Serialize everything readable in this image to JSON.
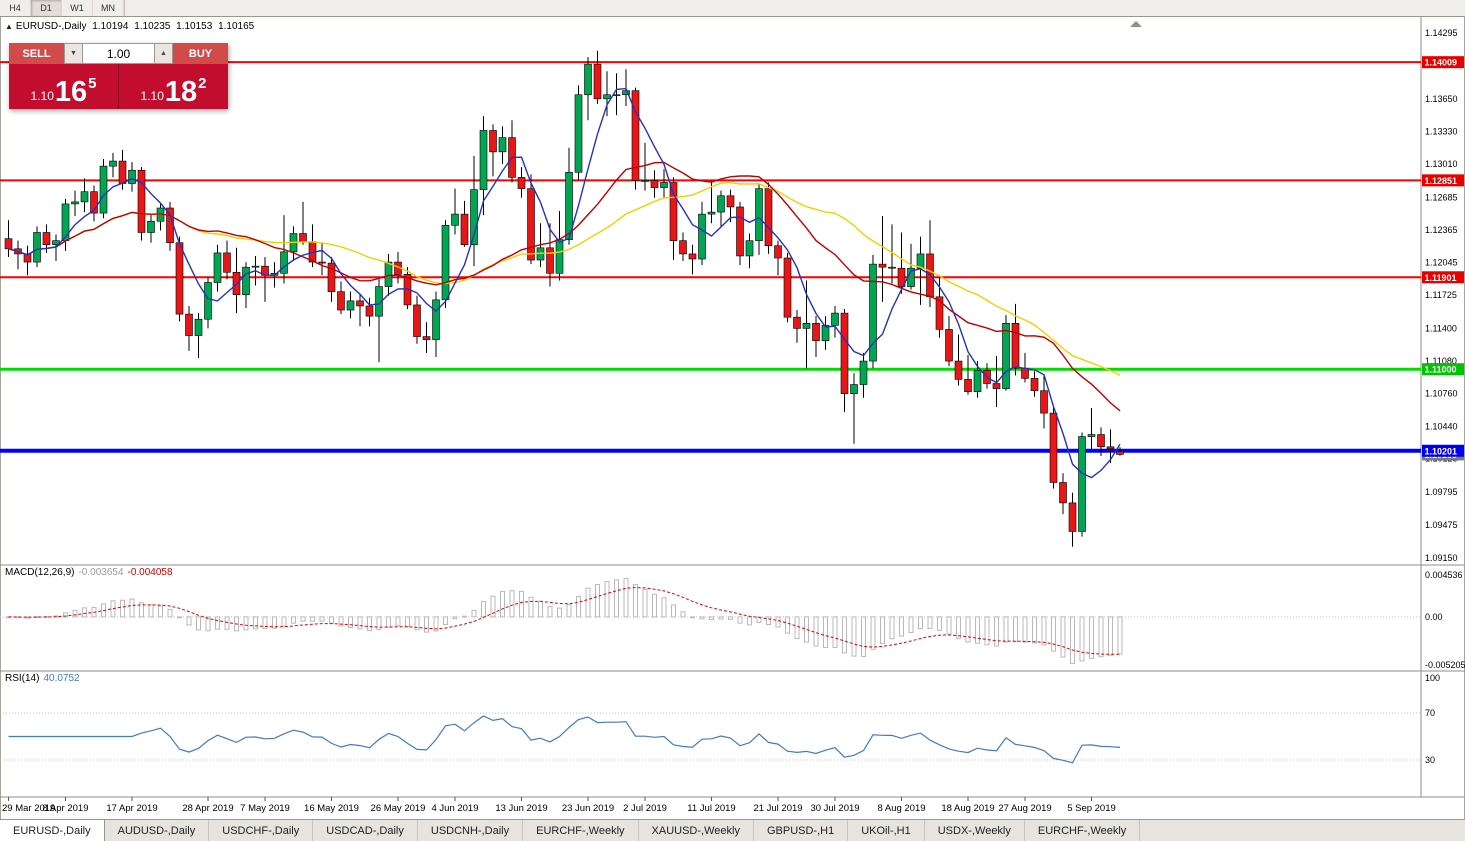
{
  "toolbar": {
    "timeframes": [
      {
        "label": "H4",
        "active": false
      },
      {
        "label": "D1",
        "active": true
      },
      {
        "label": "W1",
        "active": false
      },
      {
        "label": "MN",
        "active": false
      }
    ]
  },
  "chart": {
    "symbol": "EURUSD-,Daily",
    "open": "1.10194",
    "high": "1.10235",
    "low": "1.10153",
    "close": "1.10165",
    "panel_toggle_icon": "▲"
  },
  "trade_panel": {
    "sell_label": "SELL",
    "buy_label": "BUY",
    "volume": "1.00",
    "volume_down_icon": "▼",
    "volume_up_icon": "▲",
    "bid": {
      "prefix": "1.10",
      "big": "16",
      "sup": "5"
    },
    "ask": {
      "prefix": "1.10",
      "big": "18",
      "sup": "2"
    },
    "panel_color": "#c30d2e",
    "button_color": "#d14b4b"
  },
  "indicators": {
    "macd": {
      "name": "MACD(12,26,9)",
      "value_main": "-0.003654",
      "value_signal": "-0.004058",
      "axis_labels": [
        "0.004536",
        "0.00",
        "-0.005205"
      ]
    },
    "rsi": {
      "name": "RSI(14)",
      "value": "40.0752",
      "axis_labels": [
        "100",
        "70",
        "30"
      ]
    }
  },
  "tabs": {
    "active": 0,
    "items": [
      "EURUSD-,Daily",
      "AUDUSD-,Daily",
      "USDCHF-,Daily",
      "USDCAD-,Daily",
      "USDCNH-,Daily",
      "EURCHF-,Weekly",
      "XAUUSD-,Weekly",
      "GBPUSD-,H1",
      "UKOil-,H1",
      "USDX-,Weekly",
      "EURCHF-,Weekly"
    ]
  },
  "chart_data": {
    "type": "candlestick",
    "symbol": "EURUSD",
    "timeframe": "Daily",
    "y_axis": {
      "ticks": [
        "1.14295",
        "1.13650",
        "1.13330",
        "1.13010",
        "1.12685",
        "1.12365",
        "1.12045",
        "1.11725",
        "1.11400",
        "1.11080",
        "1.10760",
        "1.10440",
        "1.10125",
        "1.09795",
        "1.09475",
        "1.09150"
      ]
    },
    "x_axis": {
      "labels": [
        {
          "i": 0,
          "t": "29 Mar 2019"
        },
        {
          "i": 6,
          "t": "8 Apr 2019"
        },
        {
          "i": 13,
          "t": "17 Apr 2019"
        },
        {
          "i": 21,
          "t": "28 Apr 2019"
        },
        {
          "i": 27,
          "t": "7 May 2019"
        },
        {
          "i": 34,
          "t": "16 May 2019"
        },
        {
          "i": 41,
          "t": "26 May 2019"
        },
        {
          "i": 47,
          "t": "4 Jun 2019"
        },
        {
          "i": 54,
          "t": "13 Jun 2019"
        },
        {
          "i": 61,
          "t": "23 Jun 2019"
        },
        {
          "i": 67,
          "t": "2 Jul 2019"
        },
        {
          "i": 74,
          "t": "11 Jul 2019"
        },
        {
          "i": 81,
          "t": "21 Jul 2019"
        },
        {
          "i": 87,
          "t": "30 Jul 2019"
        },
        {
          "i": 94,
          "t": "8 Aug 2019"
        },
        {
          "i": 101,
          "t": "18 Aug 2019"
        },
        {
          "i": 107,
          "t": "27 Aug 2019"
        },
        {
          "i": 114,
          "t": "5 Sep 2019"
        }
      ]
    },
    "h_lines": [
      {
        "price": 1.14009,
        "label": "1.14009",
        "color": "#fe0000",
        "tag_bg": "#e60000",
        "tag_fg": "#ffffff",
        "stroke_w": 2
      },
      {
        "price": 1.12851,
        "label": "1.12851",
        "color": "#fe0000",
        "tag_bg": "#e60000",
        "tag_fg": "#ffffff",
        "stroke_w": 2
      },
      {
        "price": 1.11901,
        "label": "1.11901",
        "color": "#fe0000",
        "tag_bg": "#e60000",
        "tag_fg": "#ffffff",
        "stroke_w": 2
      },
      {
        "price": 1.11,
        "label": "1.11000",
        "color": "#00dc00",
        "tag_bg": "#00c400",
        "tag_fg": "#ffffff",
        "stroke_w": 3
      },
      {
        "price": 1.10201,
        "label": "1.10201",
        "color": "#0000ff",
        "tag_bg": "#0000ee",
        "tag_fg": "#ffffff",
        "stroke_w": 4
      }
    ],
    "current_bid_tag": {
      "price": 1.10165,
      "label": "1.10165",
      "tag_bg": "#7a7a7a",
      "tag_fg": "#ffffff"
    },
    "moving_averages": [
      {
        "period": 30,
        "type": "sma",
        "color": "#f2cf01",
        "width": 1.4
      },
      {
        "period": 20,
        "type": "sma",
        "color": "#c00000",
        "width": 1.4
      },
      {
        "period": 5,
        "type": "sma",
        "color": "#2431c4",
        "width": 1.4
      }
    ],
    "candle_colors": {
      "up": "#00a651",
      "down": "#e81717",
      "outline": "#000000"
    },
    "macd_settings": {
      "fast": 12,
      "slow": 26,
      "signal": 9,
      "hist_color": "#b9b9b9",
      "signal_color": "#e00000",
      "axis": {
        "top": 0.004536,
        "zero": 0,
        "bottom": -0.005205
      }
    },
    "rsi_settings": {
      "period": 14,
      "color": "#3f7cc4",
      "levels": [
        70,
        30
      ]
    },
    "candles": [
      [
        1.1228,
        1.1246,
        1.121,
        1.1218
      ],
      [
        1.1218,
        1.1226,
        1.1198,
        1.1213
      ],
      [
        1.1213,
        1.1221,
        1.1192,
        1.1205
      ],
      [
        1.1205,
        1.124,
        1.12,
        1.1234
      ],
      [
        1.1234,
        1.1242,
        1.1214,
        1.1222
      ],
      [
        1.1222,
        1.1232,
        1.1206,
        1.1226
      ],
      [
        1.1226,
        1.1267,
        1.1216,
        1.1262
      ],
      [
        1.1262,
        1.1275,
        1.125,
        1.1264
      ],
      [
        1.1264,
        1.1287,
        1.1254,
        1.1274
      ],
      [
        1.1274,
        1.128,
        1.1245,
        1.1253
      ],
      [
        1.1253,
        1.1306,
        1.1248,
        1.1299
      ],
      [
        1.1299,
        1.1312,
        1.1288,
        1.1304
      ],
      [
        1.1304,
        1.1315,
        1.1276,
        1.1282
      ],
      [
        1.1282,
        1.1303,
        1.1274,
        1.1295
      ],
      [
        1.1295,
        1.1298,
        1.1226,
        1.1234
      ],
      [
        1.1234,
        1.1252,
        1.1224,
        1.1245
      ],
      [
        1.1245,
        1.1262,
        1.1236,
        1.1258
      ],
      [
        1.1258,
        1.1264,
        1.1216,
        1.1224
      ],
      [
        1.1224,
        1.123,
        1.1147,
        1.1154
      ],
      [
        1.1154,
        1.1162,
        1.1118,
        1.1133
      ],
      [
        1.1133,
        1.1155,
        1.1111,
        1.1149
      ],
      [
        1.1149,
        1.119,
        1.114,
        1.1185
      ],
      [
        1.1185,
        1.1222,
        1.1176,
        1.1214
      ],
      [
        1.1214,
        1.1226,
        1.1188,
        1.1195
      ],
      [
        1.1195,
        1.1219,
        1.1155,
        1.1173
      ],
      [
        1.1173,
        1.1205,
        1.116,
        1.12
      ],
      [
        1.12,
        1.1211,
        1.1182,
        1.1201
      ],
      [
        1.1201,
        1.121,
        1.1166,
        1.1192
      ],
      [
        1.1192,
        1.1205,
        1.118,
        1.1194
      ],
      [
        1.1194,
        1.1251,
        1.1184,
        1.1215
      ],
      [
        1.1215,
        1.124,
        1.1206,
        1.1233
      ],
      [
        1.1233,
        1.1264,
        1.1222,
        1.1225
      ],
      [
        1.1225,
        1.1242,
        1.12,
        1.1205
      ],
      [
        1.1205,
        1.1224,
        1.1192,
        1.1204
      ],
      [
        1.1204,
        1.121,
        1.1166,
        1.1176
      ],
      [
        1.1176,
        1.1186,
        1.1154,
        1.1158
      ],
      [
        1.1158,
        1.1176,
        1.115,
        1.1167
      ],
      [
        1.1167,
        1.1174,
        1.1142,
        1.1162
      ],
      [
        1.1162,
        1.117,
        1.1142,
        1.1152
      ],
      [
        1.1152,
        1.1188,
        1.1107,
        1.1181
      ],
      [
        1.1181,
        1.1213,
        1.1172,
        1.1205
      ],
      [
        1.1205,
        1.1215,
        1.1184,
        1.1193
      ],
      [
        1.1193,
        1.12,
        1.1159,
        1.1163
      ],
      [
        1.1163,
        1.1172,
        1.1125,
        1.1132
      ],
      [
        1.1132,
        1.1146,
        1.1116,
        1.1129
      ],
      [
        1.1129,
        1.1176,
        1.1112,
        1.1168
      ],
      [
        1.1168,
        1.1246,
        1.116,
        1.1241
      ],
      [
        1.1241,
        1.1277,
        1.1232,
        1.1252
      ],
      [
        1.1252,
        1.1265,
        1.122,
        1.1222
      ],
      [
        1.1222,
        1.1309,
        1.1201,
        1.1276
      ],
      [
        1.1276,
        1.1348,
        1.1251,
        1.1334
      ],
      [
        1.1334,
        1.134,
        1.1289,
        1.1313
      ],
      [
        1.1313,
        1.1338,
        1.1301,
        1.1327
      ],
      [
        1.1327,
        1.1344,
        1.1283,
        1.1288
      ],
      [
        1.1288,
        1.1298,
        1.1268,
        1.1277
      ],
      [
        1.1277,
        1.1291,
        1.1203,
        1.1207
      ],
      [
        1.1207,
        1.1243,
        1.12,
        1.1219
      ],
      [
        1.1219,
        1.1243,
        1.1181,
        1.1194
      ],
      [
        1.1194,
        1.1255,
        1.1187,
        1.1227
      ],
      [
        1.1227,
        1.1317,
        1.1222,
        1.1293
      ],
      [
        1.1293,
        1.1378,
        1.1285,
        1.1369
      ],
      [
        1.1369,
        1.1406,
        1.1344,
        1.1399
      ],
      [
        1.1399,
        1.1412,
        1.136,
        1.1365
      ],
      [
        1.1365,
        1.1392,
        1.1348,
        1.1369
      ],
      [
        1.1369,
        1.139,
        1.1349,
        1.1369
      ],
      [
        1.1369,
        1.1394,
        1.1358,
        1.1373
      ],
      [
        1.1373,
        1.1376,
        1.1276,
        1.1285
      ],
      [
        1.1285,
        1.1322,
        1.1275,
        1.1285
      ],
      [
        1.1285,
        1.1295,
        1.1268,
        1.1278
      ],
      [
        1.1278,
        1.1296,
        1.1268,
        1.1283
      ],
      [
        1.1283,
        1.1288,
        1.1207,
        1.1226
      ],
      [
        1.1226,
        1.1234,
        1.1206,
        1.1213
      ],
      [
        1.1213,
        1.1222,
        1.1193,
        1.1208
      ],
      [
        1.1208,
        1.1264,
        1.1202,
        1.1252
      ],
      [
        1.1252,
        1.1285,
        1.1243,
        1.1254
      ],
      [
        1.1254,
        1.1275,
        1.1239,
        1.127
      ],
      [
        1.127,
        1.1276,
        1.1244,
        1.1259
      ],
      [
        1.1259,
        1.1264,
        1.1202,
        1.1211
      ],
      [
        1.1211,
        1.1233,
        1.1199,
        1.1226
      ],
      [
        1.1226,
        1.1282,
        1.1212,
        1.1277
      ],
      [
        1.1277,
        1.1283,
        1.1213,
        1.1221
      ],
      [
        1.1221,
        1.1226,
        1.1192,
        1.1209
      ],
      [
        1.1209,
        1.1214,
        1.1146,
        1.1151
      ],
      [
        1.1151,
        1.1158,
        1.1126,
        1.114
      ],
      [
        1.114,
        1.1187,
        1.1101,
        1.1145
      ],
      [
        1.1145,
        1.1152,
        1.1112,
        1.1128
      ],
      [
        1.1128,
        1.1152,
        1.1119,
        1.1143
      ],
      [
        1.1143,
        1.1162,
        1.1131,
        1.1155
      ],
      [
        1.1155,
        1.1159,
        1.1058,
        1.1076
      ],
      [
        1.1076,
        1.1096,
        1.1027,
        1.1085
      ],
      [
        1.1085,
        1.1116,
        1.1072,
        1.1108
      ],
      [
        1.1108,
        1.1212,
        1.1101,
        1.1203
      ],
      [
        1.1203,
        1.125,
        1.1166,
        1.12
      ],
      [
        1.12,
        1.1242,
        1.1184,
        1.1199
      ],
      [
        1.1199,
        1.1234,
        1.1174,
        1.1181
      ],
      [
        1.1181,
        1.1223,
        1.1178,
        1.1199
      ],
      [
        1.1199,
        1.123,
        1.1163,
        1.1213
      ],
      [
        1.1213,
        1.1246,
        1.1161,
        1.1171
      ],
      [
        1.1171,
        1.1192,
        1.1131,
        1.1139
      ],
      [
        1.1139,
        1.1152,
        1.1103,
        1.1108
      ],
      [
        1.1108,
        1.1134,
        1.1084,
        1.109
      ],
      [
        1.109,
        1.1114,
        1.1075,
        1.1078
      ],
      [
        1.1078,
        1.1108,
        1.1072,
        1.1099
      ],
      [
        1.1099,
        1.1106,
        1.1081,
        1.1086
      ],
      [
        1.1086,
        1.1113,
        1.1063,
        1.1081
      ],
      [
        1.1081,
        1.1153,
        1.1079,
        1.1145
      ],
      [
        1.1145,
        1.1164,
        1.1094,
        1.1101
      ],
      [
        1.1101,
        1.1116,
        1.1087,
        1.1091
      ],
      [
        1.1091,
        1.1098,
        1.1073,
        1.1079
      ],
      [
        1.1079,
        1.1094,
        1.1042,
        1.1057
      ],
      [
        1.1057,
        1.1064,
        1.0983,
        1.0989
      ],
      [
        1.0989,
        1.0998,
        1.0958,
        1.0969
      ],
      [
        1.0969,
        1.0979,
        1.0926,
        1.0941
      ],
      [
        1.0941,
        1.1038,
        1.0936,
        1.1034
      ],
      [
        1.1034,
        1.1062,
        1.1022,
        1.1036
      ],
      [
        1.1036,
        1.1043,
        1.1015,
        1.1024
      ],
      [
        1.1024,
        1.1041,
        1.1008,
        1.1022
      ],
      [
        1.10194,
        1.10235,
        1.10153,
        1.10165
      ]
    ]
  }
}
